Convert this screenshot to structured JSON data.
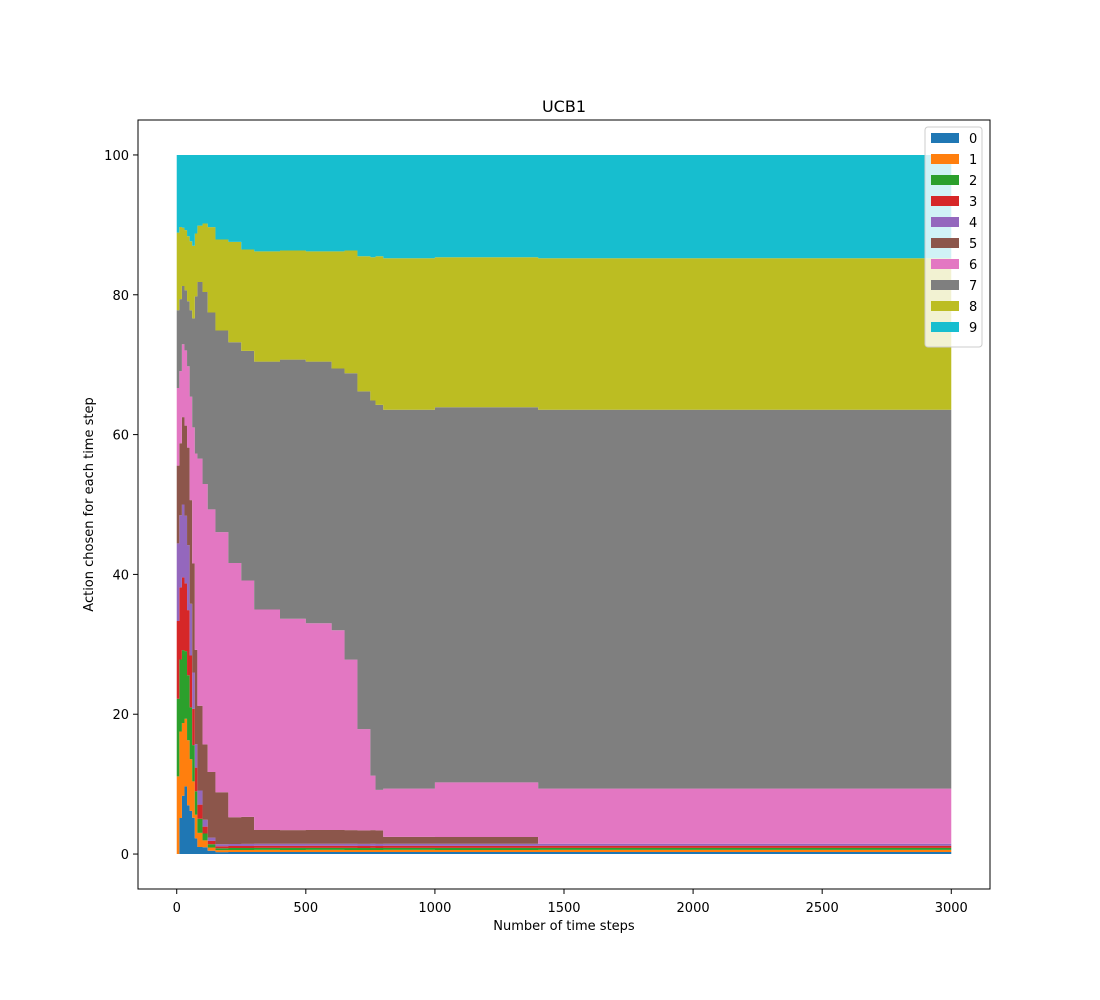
{
  "chart_data": {
    "type": "area",
    "title": "UCB1",
    "xlabel": "Number of time steps",
    "ylabel": "Action chosen for each time step",
    "xlim": [
      -150,
      3150
    ],
    "ylim": [
      -5,
      105
    ],
    "xticks": [
      0,
      500,
      1000,
      1500,
      2000,
      2500,
      3000
    ],
    "yticks": [
      0,
      20,
      40,
      60,
      80,
      100
    ],
    "legend_location": "top-right",
    "colors": [
      "#1f77b4",
      "#ff7f0e",
      "#2ca02c",
      "#d62728",
      "#9467bd",
      "#8c564b",
      "#e377c2",
      "#7f7f7f",
      "#bcbd22",
      "#17becf"
    ],
    "series": [
      {
        "name": "0",
        "x": [
          0,
          10,
          20,
          30,
          40,
          50,
          60,
          70,
          80,
          100,
          120,
          150,
          3000
        ],
        "values": [
          0,
          5,
          8,
          9,
          6,
          5,
          4,
          2,
          1,
          1,
          0.5,
          0.3,
          0
        ]
      },
      {
        "name": "1",
        "x": [
          0,
          10,
          20,
          30,
          40,
          50,
          60,
          70,
          80,
          100,
          120,
          150,
          3000
        ],
        "values": [
          10,
          12,
          10,
          9,
          8,
          6,
          4,
          3,
          2,
          1,
          0.5,
          0.3,
          0
        ]
      },
      {
        "name": "2",
        "x": [
          0,
          10,
          20,
          30,
          40,
          50,
          60,
          70,
          80,
          100,
          120,
          150,
          3000
        ],
        "values": [
          10,
          10,
          10,
          9,
          8,
          6,
          4,
          3,
          2,
          1,
          0.5,
          0.3,
          0
        ]
      },
      {
        "name": "3",
        "x": [
          0,
          10,
          20,
          30,
          40,
          50,
          60,
          70,
          80,
          100,
          120,
          150,
          3000
        ],
        "values": [
          10,
          10,
          10,
          9,
          8,
          6,
          4,
          3,
          2,
          1,
          0.5,
          0.3,
          0
        ]
      },
      {
        "name": "4",
        "x": [
          0,
          10,
          20,
          30,
          40,
          50,
          60,
          70,
          80,
          100,
          120,
          150,
          3000
        ],
        "values": [
          10,
          10,
          10,
          9,
          8,
          6,
          4,
          3,
          2,
          1,
          0.5,
          0.3,
          0
        ]
      },
      {
        "name": "5",
        "x": [
          0,
          10,
          20,
          30,
          40,
          50,
          60,
          70,
          80,
          100,
          120,
          150,
          200,
          300,
          500,
          700,
          770,
          800,
          1000,
          1390,
          1400,
          3000
        ],
        "values": [
          10,
          10,
          12,
          12,
          12,
          12,
          12,
          12,
          12,
          11,
          10,
          8,
          4,
          2,
          2,
          2,
          2,
          1,
          1,
          1,
          0,
          0
        ]
      },
      {
        "name": "6",
        "x": [
          0,
          10,
          20,
          30,
          40,
          50,
          60,
          70,
          80,
          100,
          120,
          150,
          200,
          250,
          300,
          400,
          500,
          600,
          650,
          700,
          750,
          770,
          800,
          1000,
          3000
        ],
        "values": [
          10,
          10,
          10,
          10,
          10,
          12,
          15,
          25,
          35,
          38,
          40,
          40,
          38,
          35,
          32,
          31,
          30,
          29,
          25,
          15,
          8,
          6,
          7,
          8,
          8
        ]
      },
      {
        "name": "7",
        "x": [
          0,
          10,
          20,
          30,
          40,
          50,
          60,
          70,
          80,
          100,
          120,
          150,
          200,
          250,
          300,
          400,
          500,
          600,
          650,
          700,
          750,
          770,
          800,
          1000,
          3000
        ],
        "values": [
          10,
          10,
          8,
          8,
          8,
          10,
          12,
          20,
          25,
          28,
          30,
          31,
          33,
          34,
          36,
          38,
          38,
          38,
          42,
          50,
          55,
          57,
          55,
          55,
          55
        ]
      },
      {
        "name": "8",
        "x": [
          0,
          10,
          20,
          30,
          40,
          50,
          60,
          70,
          80,
          100,
          120,
          150,
          200,
          250,
          300,
          400,
          500,
          600,
          650,
          700,
          750,
          770,
          800,
          1000,
          3000
        ],
        "values": [
          10,
          10,
          8,
          8,
          8,
          8,
          8,
          8,
          8,
          10,
          13,
          14,
          15,
          15,
          16,
          16,
          16,
          17,
          18,
          20,
          21,
          22,
          22,
          22,
          22
        ]
      },
      {
        "name": "9",
        "x": [
          0,
          10,
          20,
          30,
          40,
          50,
          60,
          70,
          80,
          100,
          120,
          150,
          200,
          250,
          300,
          400,
          500,
          600,
          650,
          700,
          750,
          770,
          800,
          1000,
          3000
        ],
        "values": [
          10,
          10,
          10,
          10,
          10,
          10,
          10,
          10,
          10,
          10,
          11,
          13,
          13,
          14,
          14,
          14,
          14,
          14,
          14,
          15,
          15,
          15,
          15,
          15,
          15
        ]
      }
    ]
  }
}
